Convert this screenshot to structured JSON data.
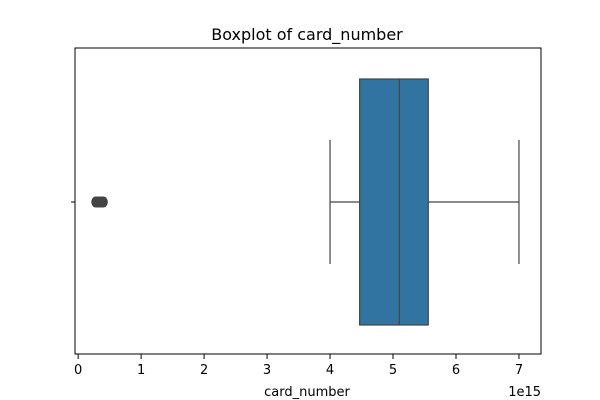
{
  "chart_data": {
    "type": "box",
    "title": "Boxplot of card_number",
    "xlabel": "card_number",
    "ylabel": "",
    "x_scale_label": "1e15",
    "xlim": [
      -0.05,
      7.35
    ],
    "x_ticks": [
      0,
      1,
      2,
      3,
      4,
      5,
      6,
      7
    ],
    "x_tick_labels": [
      "0",
      "1",
      "2",
      "3",
      "4",
      "5",
      "6",
      "7"
    ],
    "grid": false,
    "box": {
      "whisker_low": 4.0,
      "q1": 4.47,
      "median": 5.1,
      "q3": 5.56,
      "whisker_high": 7.0,
      "outliers": [
        0.28,
        0.3,
        0.32,
        0.34,
        0.36,
        0.38,
        0.4
      ]
    },
    "colors": {
      "box_fill": "#3274a1",
      "line": "#444444",
      "outlier": "#444444"
    }
  }
}
